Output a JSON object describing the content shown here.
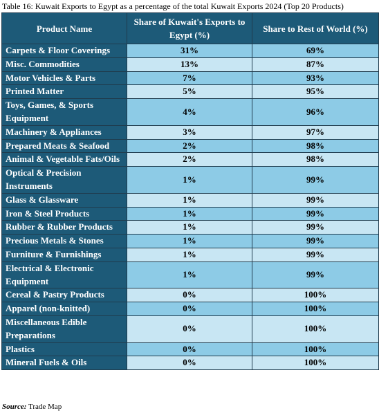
{
  "caption": "Table 16: Kuwait Exports to Egypt as a percentage of the total Kuwait Exports 2024 (Top 20 Products)",
  "headers": {
    "product": "Product Name",
    "share_egypt": "Share of Kuwait's Exports to Egypt (%)",
    "share_rest": "Share to Rest of World (%)"
  },
  "rows": [
    {
      "product": "Carpets & Floor Coverings",
      "egypt": "31%",
      "rest": "69%"
    },
    {
      "product": "Misc. Commodities",
      "egypt": "13%",
      "rest": "87%"
    },
    {
      "product": "Motor Vehicles & Parts",
      "egypt": "7%",
      "rest": "93%"
    },
    {
      "product": "Printed Matter",
      "egypt": "5%",
      "rest": "95%"
    },
    {
      "product": "Toys, Games, & Sports Equipment",
      "egypt": "4%",
      "rest": "96%"
    },
    {
      "product": "Machinery & Appliances",
      "egypt": "3%",
      "rest": "97%"
    },
    {
      "product": "Prepared Meats & Seafood",
      "egypt": "2%",
      "rest": "98%"
    },
    {
      "product": "Animal & Vegetable Fats/Oils",
      "egypt": "2%",
      "rest": "98%"
    },
    {
      "product": "Optical & Precision Instruments",
      "egypt": "1%",
      "rest": "99%"
    },
    {
      "product": "Glass & Glassware",
      "egypt": "1%",
      "rest": "99%"
    },
    {
      "product": "Iron & Steel Products",
      "egypt": "1%",
      "rest": "99%"
    },
    {
      "product": "Rubber & Rubber Products",
      "egypt": "1%",
      "rest": "99%"
    },
    {
      "product": "Precious Metals & Stones",
      "egypt": "1%",
      "rest": "99%"
    },
    {
      "product": "Furniture & Furnishings",
      "egypt": "1%",
      "rest": "99%"
    },
    {
      "product": "Electrical & Electronic Equipment",
      "egypt": "1%",
      "rest": "99%"
    },
    {
      "product": "Cereal & Pastry Products",
      "egypt": "0%",
      "rest": "100%"
    },
    {
      "product": "Apparel (non-knitted)",
      "egypt": "0%",
      "rest": "100%"
    },
    {
      "product": "Miscellaneous Edible Preparations",
      "egypt": "0%",
      "rest": "100%"
    },
    {
      "product": "Plastics",
      "egypt": "0%",
      "rest": "100%"
    },
    {
      "product": "Mineral Fuels & Oils",
      "egypt": "0%",
      "rest": "100%"
    }
  ],
  "source": {
    "label": "Source:",
    "text": "Trade Map"
  },
  "colors": {
    "header_bg": "#1d5a78",
    "row_dark": "#8dcbe6",
    "row_light": "#c8e6f3"
  }
}
